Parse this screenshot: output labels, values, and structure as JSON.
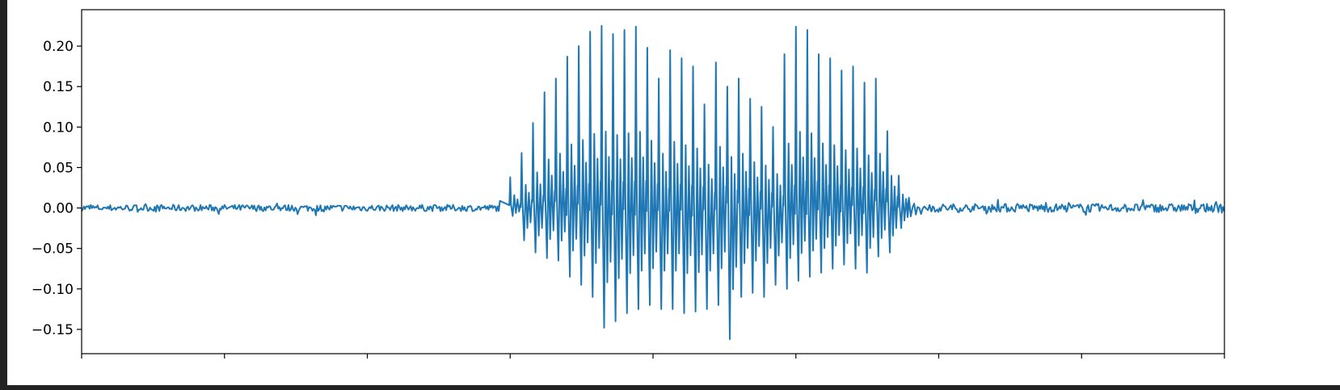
{
  "chart_data": {
    "type": "line",
    "title": "",
    "xlabel": "",
    "ylabel": "",
    "xlim": [
      0,
      8
    ],
    "ylim": [
      -0.18,
      0.245
    ],
    "x_ticks": [
      0,
      1,
      2,
      3,
      4,
      5,
      6,
      7,
      8
    ],
    "x_tick_labels_visible": false,
    "y_ticks": [
      0.2,
      0.15,
      0.1,
      0.05,
      0.0,
      -0.05,
      -0.1,
      -0.15
    ],
    "y_tick_labels": [
      "0.20",
      "0.15",
      "0.10",
      "0.05",
      "0.00",
      "−0.05",
      "−0.10",
      "−0.15"
    ],
    "grid": false,
    "legend": "none",
    "colors": {
      "line": "#1f77b4",
      "axes": "#000000",
      "background": "#ffffff",
      "frame": "#222222"
    },
    "series": [
      {
        "values_note": "",
        "noise_floor_amplitude": 0.004,
        "active_interval_x": [
          2.93,
          5.78
        ],
        "pulse_peaks": [
          [
            3.0,
            0.038,
            -0.01
          ],
          [
            3.08,
            0.068,
            -0.04
          ],
          [
            3.16,
            0.105,
            -0.055
          ],
          [
            3.24,
            0.143,
            -0.062
          ],
          [
            3.32,
            0.16,
            -0.065
          ],
          [
            3.4,
            0.187,
            -0.085
          ],
          [
            3.48,
            0.2,
            -0.095
          ],
          [
            3.56,
            0.218,
            -0.11
          ],
          [
            3.64,
            0.225,
            -0.148
          ],
          [
            3.72,
            0.215,
            -0.14
          ],
          [
            3.8,
            0.22,
            -0.13
          ],
          [
            3.88,
            0.224,
            -0.125
          ],
          [
            3.96,
            0.198,
            -0.12
          ],
          [
            4.04,
            0.16,
            -0.125
          ],
          [
            4.12,
            0.195,
            -0.125
          ],
          [
            4.2,
            0.185,
            -0.13
          ],
          [
            4.28,
            0.175,
            -0.128
          ],
          [
            4.36,
            0.128,
            -0.125
          ],
          [
            4.44,
            0.18,
            -0.12
          ],
          [
            4.52,
            0.15,
            -0.162
          ],
          [
            4.6,
            0.16,
            -0.11
          ],
          [
            4.68,
            0.135,
            -0.105
          ],
          [
            4.76,
            0.125,
            -0.11
          ],
          [
            4.84,
            0.1,
            -0.095
          ],
          [
            4.92,
            0.19,
            -0.1
          ],
          [
            5.0,
            0.224,
            -0.09
          ],
          [
            5.08,
            0.22,
            -0.085
          ],
          [
            5.16,
            0.19,
            -0.08
          ],
          [
            5.24,
            0.185,
            -0.075
          ],
          [
            5.32,
            0.17,
            -0.07
          ],
          [
            5.4,
            0.175,
            -0.075
          ],
          [
            5.48,
            0.155,
            -0.08
          ],
          [
            5.56,
            0.16,
            -0.06
          ],
          [
            5.64,
            0.095,
            -0.055
          ],
          [
            5.72,
            0.04,
            -0.025
          ]
        ]
      }
    ]
  }
}
